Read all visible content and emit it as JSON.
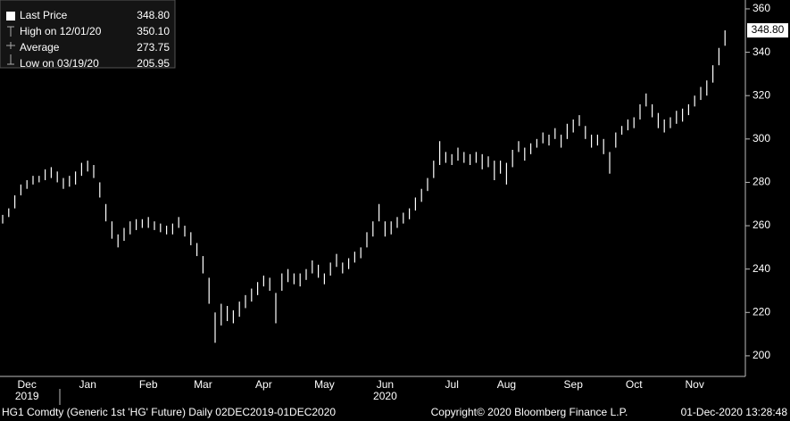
{
  "chart_data": {
    "type": "range_bar",
    "legend": [
      {
        "label": "Last Price",
        "value": "348.80"
      },
      {
        "label": "High on 12/01/20",
        "value": "350.10"
      },
      {
        "label": "Average",
        "value": "273.75"
      },
      {
        "label": "Low on 03/19/20",
        "value": "205.95"
      }
    ],
    "categories": [
      null,
      null,
      null,
      null,
      "Dec",
      null,
      null,
      null,
      null,
      null,
      null,
      null,
      null,
      null,
      "Jan",
      null,
      null,
      null,
      null,
      null,
      null,
      null,
      null,
      null,
      "Feb",
      null,
      null,
      null,
      null,
      null,
      null,
      null,
      null,
      "Mar",
      null,
      null,
      null,
      null,
      null,
      null,
      null,
      null,
      null,
      "Apr",
      null,
      null,
      null,
      null,
      null,
      null,
      null,
      null,
      null,
      "May",
      null,
      null,
      null,
      null,
      null,
      null,
      null,
      null,
      null,
      "Jun",
      null,
      null,
      null,
      null,
      null,
      null,
      null,
      null,
      null,
      null,
      "Jul",
      null,
      null,
      null,
      null,
      null,
      null,
      null,
      null,
      "Aug",
      null,
      null,
      null,
      null,
      null,
      null,
      null,
      null,
      null,
      null,
      "Sep",
      null,
      null,
      null,
      null,
      null,
      null,
      null,
      null,
      null,
      "Oct",
      null,
      null,
      null,
      null,
      null,
      null,
      null,
      null,
      null,
      "Nov",
      null,
      null,
      null,
      null,
      null
    ],
    "year_labels": [
      null,
      null,
      null,
      null,
      "2019",
      null,
      null,
      null,
      null,
      null,
      null,
      null,
      null,
      null,
      null,
      null,
      null,
      null,
      null,
      null,
      null,
      null,
      null,
      null,
      null,
      null,
      null,
      null,
      null,
      null,
      null,
      null,
      null,
      null,
      null,
      null,
      null,
      null,
      null,
      null,
      null,
      null,
      null,
      null,
      null,
      null,
      null,
      null,
      null,
      null,
      null,
      null,
      null,
      null,
      null,
      null,
      null,
      null,
      null,
      null,
      null,
      null,
      null,
      "2020",
      null,
      null,
      null,
      null,
      null,
      null,
      null,
      null,
      null,
      null,
      null,
      null,
      null,
      null,
      null,
      null,
      null,
      null,
      null,
      null,
      null,
      null,
      null,
      null,
      null,
      null,
      null,
      null,
      null,
      null,
      null,
      null,
      null,
      null,
      null,
      null,
      null,
      null,
      null,
      null,
      null,
      null,
      null,
      null,
      null,
      null,
      null,
      null,
      null,
      null,
      null,
      null,
      null,
      null,
      null,
      null
    ],
    "series": [
      {
        "color": "#ffffff",
        "low": [
          261,
          264,
          268,
          274,
          277,
          279,
          280,
          281,
          282,
          280,
          277,
          278,
          279,
          283,
          285,
          282,
          273,
          262,
          254,
          250,
          253,
          256,
          258,
          259,
          259,
          258,
          257,
          256,
          256,
          259,
          255,
          251,
          246,
          238,
          224,
          206,
          214,
          216,
          215,
          218,
          222,
          225,
          228,
          232,
          230,
          215,
          230,
          234,
          233,
          232,
          235,
          238,
          236,
          233,
          237,
          241,
          238,
          240,
          243,
          245,
          250,
          255,
          262,
          255,
          256,
          259,
          261,
          263,
          267,
          271,
          276,
          282,
          288,
          289,
          288,
          290,
          289,
          288,
          289,
          286,
          287,
          281,
          284,
          279,
          287,
          294,
          290,
          293,
          296,
          298,
          297,
          300,
          296,
          300,
          303,
          306,
          300,
          296,
          297,
          293,
          284,
          296,
          302,
          304,
          305,
          309,
          315,
          310,
          305,
          303,
          305,
          307,
          308,
          311,
          315,
          318,
          320,
          326,
          334,
          343
        ],
        "high": [
          265,
          268,
          274,
          279,
          281,
          283,
          283,
          286,
          287,
          285,
          282,
          283,
          285,
          289,
          290,
          288,
          280,
          270,
          262,
          256,
          259,
          262,
          263,
          263,
          264,
          262,
          261,
          260,
          261,
          264,
          260,
          257,
          252,
          246,
          236,
          220,
          224,
          223,
          221,
          225,
          228,
          231,
          234,
          237,
          236,
          229,
          238,
          240,
          238,
          238,
          240,
          244,
          242,
          238,
          243,
          247,
          243,
          245,
          248,
          250,
          257,
          262,
          270,
          262,
          262,
          264,
          266,
          268,
          273,
          277,
          282,
          290,
          299,
          294,
          293,
          296,
          294,
          293,
          294,
          293,
          292,
          290,
          290,
          289,
          295,
          299,
          296,
          298,
          300,
          303,
          302,
          305,
          302,
          307,
          309,
          311,
          306,
          302,
          302,
          300,
          294,
          303,
          306,
          309,
          310,
          316,
          321,
          316,
          312,
          309,
          310,
          313,
          314,
          316,
          320,
          324,
          327,
          334,
          342,
          350.1
        ]
      }
    ],
    "ylim": [
      190.5,
      364.1
    ],
    "yticks": [
      200,
      220,
      240,
      260,
      280,
      300,
      320,
      340,
      360
    ],
    "footer_left": "HG1 Comdty (Generic 1st 'HG' Future)  Daily 02DEC2019-01DEC2020",
    "footer_center": "Copyright© 2020 Bloomberg Finance L.P.",
    "footer_right": "01-Dec-2020 13:28:48"
  }
}
